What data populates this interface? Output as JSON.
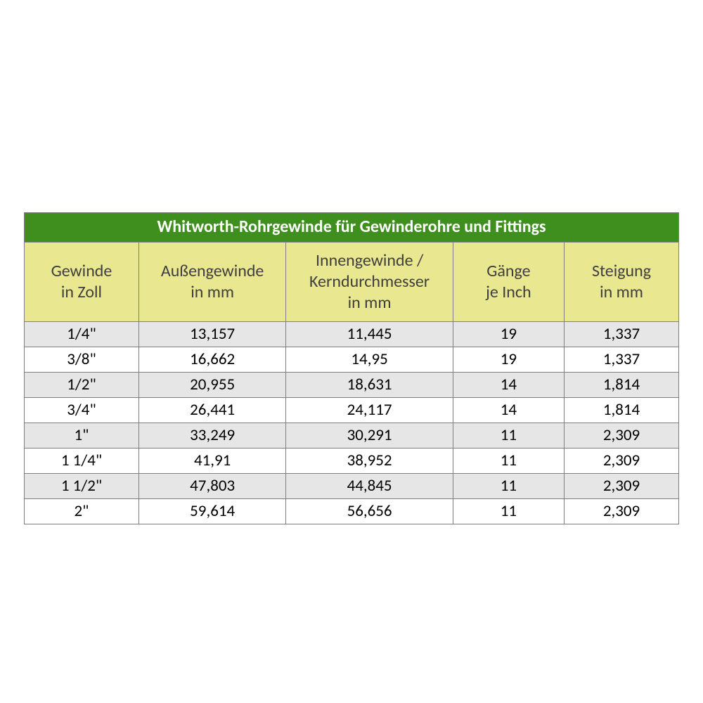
{
  "table": {
    "type": "table",
    "title": "Whitworth-Rohrgewinde für Gewinderohre und Fittings",
    "title_bg": "#3e8f1e",
    "title_color": "#ffffff",
    "title_fontsize": 24,
    "title_fontweight": 700,
    "header_bg": "#e9e78f",
    "header_color": "#3f3f3f",
    "header_fontsize": 24,
    "header_fontweight": 400,
    "border_color": "#7f7f7f",
    "row_odd_bg": "#e6e6e6",
    "row_even_bg": "#ffffff",
    "cell_fontsize": 23,
    "cell_color": "#000000",
    "background": "#ffffff",
    "col_widths_pct": [
      17.5,
      22.5,
      25.5,
      17.0,
      17.5
    ],
    "columns": [
      {
        "line1": "Gewinde",
        "line2": "in Zoll"
      },
      {
        "line1": "Außengewinde",
        "line2": "in mm"
      },
      {
        "line1": "Innengewinde /",
        "line2": "Kerndurchmesser",
        "line3": "in mm"
      },
      {
        "line1": "Gänge",
        "line2": "je Inch"
      },
      {
        "line1": "Steigung",
        "line2": "in mm"
      }
    ],
    "rows": [
      [
        "1/4\"",
        "13,157",
        "11,445",
        "19",
        "1,337"
      ],
      [
        "3/8\"",
        "16,662",
        "14,95",
        "19",
        "1,337"
      ],
      [
        "1/2\"",
        "20,955",
        "18,631",
        "14",
        "1,814"
      ],
      [
        "3/4\"",
        "26,441",
        "24,117",
        "14",
        "1,814"
      ],
      [
        "1\"",
        "33,249",
        "30,291",
        "11",
        "2,309"
      ],
      [
        "1 1/4\"",
        "41,91",
        "38,952",
        "11",
        "2,309"
      ],
      [
        "1 1/2\"",
        "47,803",
        "44,845",
        "11",
        "2,309"
      ],
      [
        "2\"",
        "59,614",
        "56,656",
        "11",
        "2,309"
      ]
    ]
  }
}
